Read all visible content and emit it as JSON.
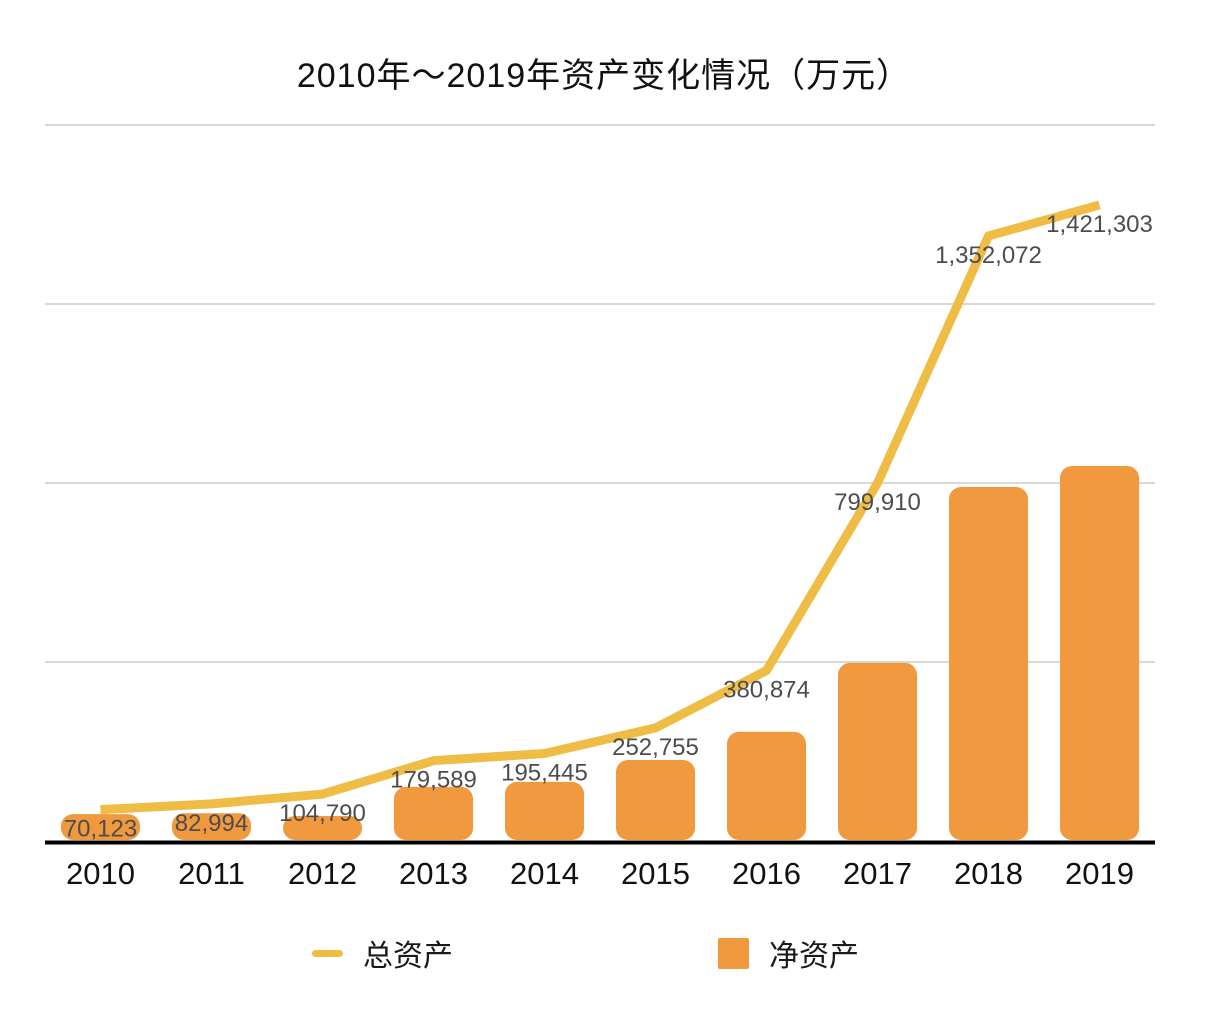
{
  "chart_data": {
    "type": "combo",
    "title": "2010年～2019年资产变化情况（万元）",
    "categories": [
      "2010",
      "2011",
      "2012",
      "2013",
      "2014",
      "2015",
      "2016",
      "2017",
      "2018",
      "2019"
    ],
    "series": [
      {
        "name": "总资产",
        "type": "line",
        "color": "#EFBD45",
        "values": [
          70123,
          82994,
          104790,
          179589,
          195445,
          252755,
          380874,
          799910,
          1352072,
          1421303
        ],
        "labels": [
          "70,123",
          "82,994",
          "104,790",
          "179,589",
          "195,445",
          "252,755",
          "380,874",
          "799,910",
          "1,352,072",
          "1,421,303"
        ]
      },
      {
        "name": "净资产",
        "type": "bar",
        "color": "#F0993E",
        "values": [
          60000,
          62000,
          56000,
          121000,
          132000,
          181000,
          244000,
          398000,
          791000,
          838000
        ],
        "values_estimated": true
      }
    ],
    "ylim": [
      0,
      1600000
    ],
    "gridline_step": 400000,
    "grid": true,
    "y_axis_labels_visible": false,
    "legend_position": "bottom",
    "colors": {
      "gridline": "#D9D9D9",
      "axis": "#000000",
      "data_label": "#4D4D4D",
      "tick_label": "#111111"
    }
  }
}
